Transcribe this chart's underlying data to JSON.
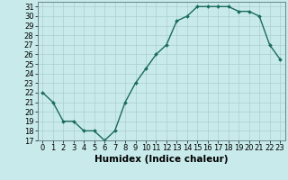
{
  "title": "",
  "xlabel": "Humidex (Indice chaleur)",
  "ylabel": "",
  "x": [
    0,
    1,
    2,
    3,
    4,
    5,
    6,
    7,
    8,
    9,
    10,
    11,
    12,
    13,
    14,
    15,
    16,
    17,
    18,
    19,
    20,
    21,
    22,
    23
  ],
  "y": [
    22,
    21,
    19,
    19,
    18,
    18,
    17,
    18,
    21,
    23,
    24.5,
    26,
    27,
    29.5,
    30,
    31,
    31,
    31,
    31,
    30.5,
    30.5,
    30,
    27,
    25.5
  ],
  "xlim": [
    -0.5,
    23.5
  ],
  "ylim": [
    17,
    31.5
  ],
  "yticks": [
    17,
    18,
    19,
    20,
    21,
    22,
    23,
    24,
    25,
    26,
    27,
    28,
    29,
    30,
    31
  ],
  "xticks": [
    0,
    1,
    2,
    3,
    4,
    5,
    6,
    7,
    8,
    9,
    10,
    11,
    12,
    13,
    14,
    15,
    16,
    17,
    18,
    19,
    20,
    21,
    22,
    23
  ],
  "line_color": "#1a6b5a",
  "marker": "D",
  "marker_size": 2.0,
  "bg_color": "#c8eaea",
  "grid_color": "#aacece",
  "tick_label_fontsize": 6.0,
  "xlabel_fontsize": 7.5,
  "linewidth": 1.0
}
